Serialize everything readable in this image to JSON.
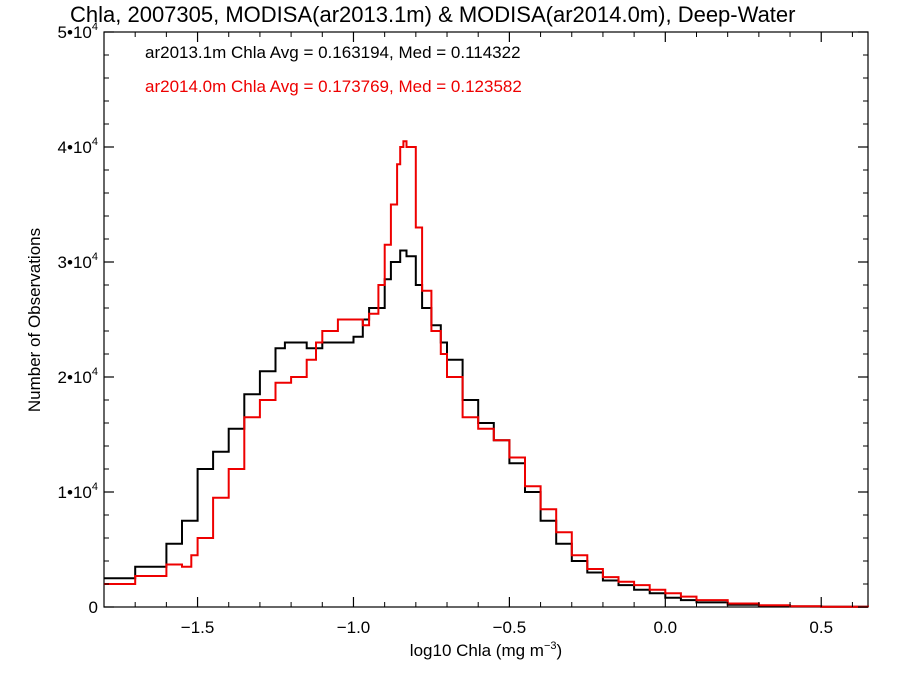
{
  "chart_data": {
    "type": "line",
    "title": "Chla, 2007305, MODISA(ar2013.1m) & MODISA(ar2014.0m), Deep-Water",
    "xlabel": "log10 Chla (mg m⁻³)",
    "xlabel_main": "log10 Chla (mg m",
    "xlabel_exp": "−3",
    "xlabel_close": ")",
    "ylabel": "Number of Observations",
    "xlim": [
      -1.8,
      0.65
    ],
    "ylim": [
      0,
      50000
    ],
    "x_ticks": [
      -1.5,
      -1.0,
      -0.5,
      0.0,
      0.5
    ],
    "x_tick_labels": [
      "−1.5",
      "−1.0",
      "−0.5",
      "0.0",
      "0.5"
    ],
    "y_ticks": [
      0,
      10000,
      20000,
      30000,
      40000,
      50000
    ],
    "y_tick_labels": [
      {
        "value": 0,
        "text": "0",
        "exp": ""
      },
      {
        "value": 10000,
        "text": "1•10",
        "exp": "4"
      },
      {
        "value": 20000,
        "text": "2•10",
        "exp": "4"
      },
      {
        "value": 30000,
        "text": "3•10",
        "exp": "4"
      },
      {
        "value": 40000,
        "text": "4•10",
        "exp": "4"
      },
      {
        "value": 50000,
        "text": "5•10",
        "exp": "4"
      }
    ],
    "grid": false,
    "legend_position": "top-left",
    "annotations": [
      "ar2013.1m Chla Avg = 0.163194, Med = 0.114322",
      "ar2014.0m Chla Avg = 0.173769, Med = 0.123582"
    ],
    "series": [
      {
        "name": "ar2013.1m",
        "color": "#000000",
        "x": [
          -1.8,
          -1.7,
          -1.6,
          -1.55,
          -1.5,
          -1.45,
          -1.4,
          -1.35,
          -1.3,
          -1.25,
          -1.22,
          -1.2,
          -1.15,
          -1.12,
          -1.1,
          -1.05,
          -1.0,
          -0.97,
          -0.95,
          -0.9,
          -0.88,
          -0.85,
          -0.83,
          -0.8,
          -0.78,
          -0.75,
          -0.72,
          -0.7,
          -0.65,
          -0.6,
          -0.55,
          -0.5,
          -0.45,
          -0.4,
          -0.35,
          -0.3,
          -0.25,
          -0.2,
          -0.15,
          -0.1,
          -0.05,
          0.0,
          0.05,
          0.1,
          0.2,
          0.3,
          0.4,
          0.5,
          0.65
        ],
        "values": [
          2500,
          3500,
          5500,
          7500,
          12000,
          13500,
          15500,
          18500,
          20500,
          22500,
          23000,
          23000,
          22500,
          22500,
          23000,
          23000,
          23500,
          25000,
          26000,
          28500,
          30000,
          31000,
          30500,
          28000,
          26000,
          24500,
          23000,
          21500,
          18000,
          16000,
          14500,
          12500,
          10000,
          7500,
          5500,
          4000,
          3000,
          2300,
          1900,
          1500,
          1200,
          800,
          600,
          400,
          200,
          100,
          50,
          30,
          20
        ]
      },
      {
        "name": "ar2014.0m",
        "color": "#ee0000",
        "x": [
          -1.8,
          -1.7,
          -1.6,
          -1.55,
          -1.52,
          -1.5,
          -1.45,
          -1.4,
          -1.35,
          -1.3,
          -1.25,
          -1.2,
          -1.15,
          -1.12,
          -1.1,
          -1.05,
          -1.0,
          -0.97,
          -0.95,
          -0.92,
          -0.9,
          -0.88,
          -0.86,
          -0.85,
          -0.84,
          -0.83,
          -0.8,
          -0.78,
          -0.75,
          -0.72,
          -0.7,
          -0.65,
          -0.6,
          -0.55,
          -0.5,
          -0.45,
          -0.4,
          -0.35,
          -0.3,
          -0.25,
          -0.2,
          -0.15,
          -0.1,
          -0.05,
          0.0,
          0.05,
          0.1,
          0.2,
          0.3,
          0.4,
          0.5,
          0.65
        ],
        "values": [
          2000,
          2700,
          3700,
          3500,
          4500,
          6000,
          9500,
          12000,
          16500,
          18000,
          19500,
          20000,
          21500,
          23000,
          24000,
          25000,
          25000,
          24500,
          25500,
          28000,
          31500,
          35000,
          38500,
          40000,
          40500,
          40000,
          33000,
          27500,
          24000,
          22000,
          20000,
          16500,
          15500,
          14500,
          13000,
          10500,
          8500,
          6500,
          4500,
          3300,
          2600,
          2200,
          1900,
          1500,
          1200,
          900,
          600,
          300,
          150,
          60,
          30,
          20
        ]
      }
    ]
  }
}
